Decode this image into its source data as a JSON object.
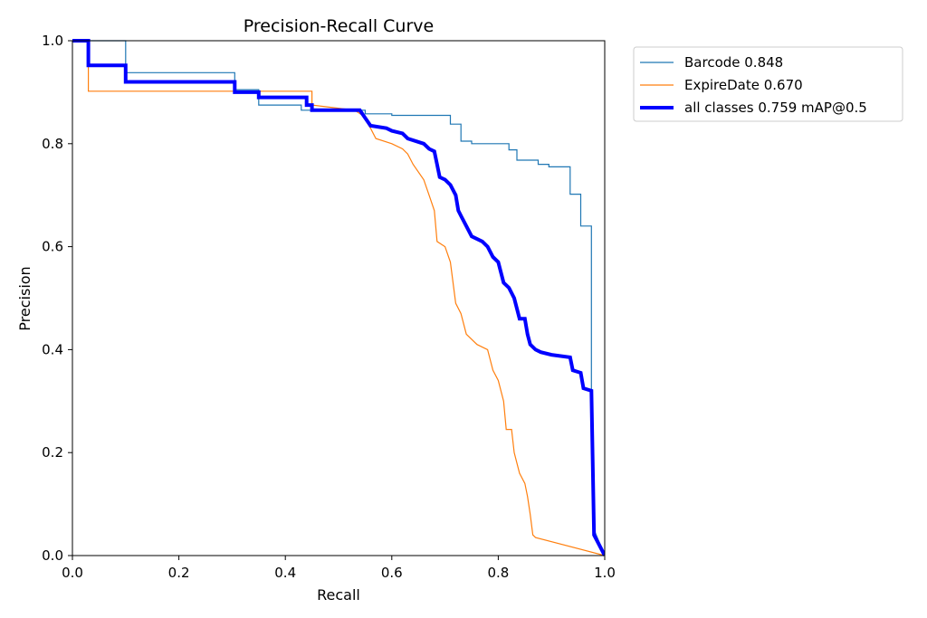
{
  "chart_data": {
    "type": "line",
    "title": "Precision-Recall Curve",
    "xlabel": "Recall",
    "ylabel": "Precision",
    "xlim": [
      0,
      1
    ],
    "ylim": [
      0,
      1
    ],
    "x_ticks": [
      "0.0",
      "0.2",
      "0.4",
      "0.6",
      "0.8",
      "1.0"
    ],
    "y_ticks": [
      "0.0",
      "0.2",
      "0.4",
      "0.6",
      "0.8",
      "1.0"
    ],
    "grid": false,
    "legend_position": "outside-top-right",
    "series": [
      {
        "name": "Barcode 0.848",
        "color": "#1f77b4",
        "width": "thin",
        "points": [
          [
            0.0,
            1.0
          ],
          [
            0.1,
            1.0
          ],
          [
            0.1,
            0.938
          ],
          [
            0.305,
            0.938
          ],
          [
            0.305,
            0.905
          ],
          [
            0.35,
            0.905
          ],
          [
            0.35,
            0.875
          ],
          [
            0.43,
            0.875
          ],
          [
            0.43,
            0.865
          ],
          [
            0.55,
            0.865
          ],
          [
            0.55,
            0.858
          ],
          [
            0.6,
            0.858
          ],
          [
            0.6,
            0.855
          ],
          [
            0.71,
            0.855
          ],
          [
            0.71,
            0.838
          ],
          [
            0.73,
            0.838
          ],
          [
            0.73,
            0.805
          ],
          [
            0.75,
            0.805
          ],
          [
            0.75,
            0.8
          ],
          [
            0.82,
            0.8
          ],
          [
            0.82,
            0.788
          ],
          [
            0.835,
            0.788
          ],
          [
            0.835,
            0.768
          ],
          [
            0.875,
            0.768
          ],
          [
            0.875,
            0.76
          ],
          [
            0.895,
            0.76
          ],
          [
            0.895,
            0.755
          ],
          [
            0.935,
            0.755
          ],
          [
            0.935,
            0.702
          ],
          [
            0.955,
            0.702
          ],
          [
            0.955,
            0.64
          ],
          [
            0.975,
            0.64
          ],
          [
            0.975,
            0.32
          ],
          [
            0.98,
            0.05
          ],
          [
            1.0,
            0.0
          ]
        ]
      },
      {
        "name": "ExpireDate 0.670",
        "color": "#ff7f0e",
        "width": "thin",
        "points": [
          [
            0.0,
            1.0
          ],
          [
            0.03,
            1.0
          ],
          [
            0.03,
            0.902
          ],
          [
            0.45,
            0.902
          ],
          [
            0.45,
            0.875
          ],
          [
            0.53,
            0.865
          ],
          [
            0.545,
            0.855
          ],
          [
            0.56,
            0.83
          ],
          [
            0.57,
            0.81
          ],
          [
            0.6,
            0.8
          ],
          [
            0.62,
            0.79
          ],
          [
            0.63,
            0.78
          ],
          [
            0.64,
            0.76
          ],
          [
            0.66,
            0.73
          ],
          [
            0.67,
            0.7
          ],
          [
            0.68,
            0.67
          ],
          [
            0.685,
            0.61
          ],
          [
            0.7,
            0.6
          ],
          [
            0.71,
            0.57
          ],
          [
            0.72,
            0.49
          ],
          [
            0.73,
            0.47
          ],
          [
            0.74,
            0.43
          ],
          [
            0.76,
            0.41
          ],
          [
            0.78,
            0.4
          ],
          [
            0.79,
            0.36
          ],
          [
            0.8,
            0.34
          ],
          [
            0.81,
            0.3
          ],
          [
            0.815,
            0.245
          ],
          [
            0.825,
            0.245
          ],
          [
            0.83,
            0.2
          ],
          [
            0.84,
            0.16
          ],
          [
            0.85,
            0.14
          ],
          [
            0.855,
            0.115
          ],
          [
            0.86,
            0.08
          ],
          [
            0.865,
            0.04
          ],
          [
            0.87,
            0.035
          ],
          [
            1.0,
            0.0
          ]
        ]
      },
      {
        "name": "all classes 0.759 mAP@0.5",
        "color": "#0000ff",
        "width": "thick",
        "points": [
          [
            0.0,
            1.0
          ],
          [
            0.03,
            1.0
          ],
          [
            0.03,
            0.952
          ],
          [
            0.1,
            0.952
          ],
          [
            0.1,
            0.92
          ],
          [
            0.305,
            0.92
          ],
          [
            0.305,
            0.9
          ],
          [
            0.35,
            0.9
          ],
          [
            0.35,
            0.89
          ],
          [
            0.44,
            0.89
          ],
          [
            0.44,
            0.875
          ],
          [
            0.45,
            0.875
          ],
          [
            0.45,
            0.865
          ],
          [
            0.54,
            0.865
          ],
          [
            0.55,
            0.85
          ],
          [
            0.56,
            0.835
          ],
          [
            0.59,
            0.83
          ],
          [
            0.6,
            0.825
          ],
          [
            0.62,
            0.82
          ],
          [
            0.63,
            0.81
          ],
          [
            0.66,
            0.8
          ],
          [
            0.67,
            0.79
          ],
          [
            0.68,
            0.785
          ],
          [
            0.685,
            0.76
          ],
          [
            0.69,
            0.735
          ],
          [
            0.7,
            0.73
          ],
          [
            0.71,
            0.72
          ],
          [
            0.72,
            0.7
          ],
          [
            0.725,
            0.67
          ],
          [
            0.73,
            0.66
          ],
          [
            0.74,
            0.64
          ],
          [
            0.75,
            0.62
          ],
          [
            0.77,
            0.61
          ],
          [
            0.78,
            0.6
          ],
          [
            0.79,
            0.58
          ],
          [
            0.8,
            0.57
          ],
          [
            0.81,
            0.53
          ],
          [
            0.82,
            0.52
          ],
          [
            0.83,
            0.5
          ],
          [
            0.84,
            0.46
          ],
          [
            0.85,
            0.46
          ],
          [
            0.855,
            0.43
          ],
          [
            0.86,
            0.41
          ],
          [
            0.87,
            0.4
          ],
          [
            0.88,
            0.395
          ],
          [
            0.9,
            0.39
          ],
          [
            0.935,
            0.385
          ],
          [
            0.94,
            0.36
          ],
          [
            0.955,
            0.355
          ],
          [
            0.96,
            0.325
          ],
          [
            0.975,
            0.32
          ],
          [
            0.98,
            0.04
          ],
          [
            1.0,
            0.0
          ]
        ]
      }
    ]
  }
}
